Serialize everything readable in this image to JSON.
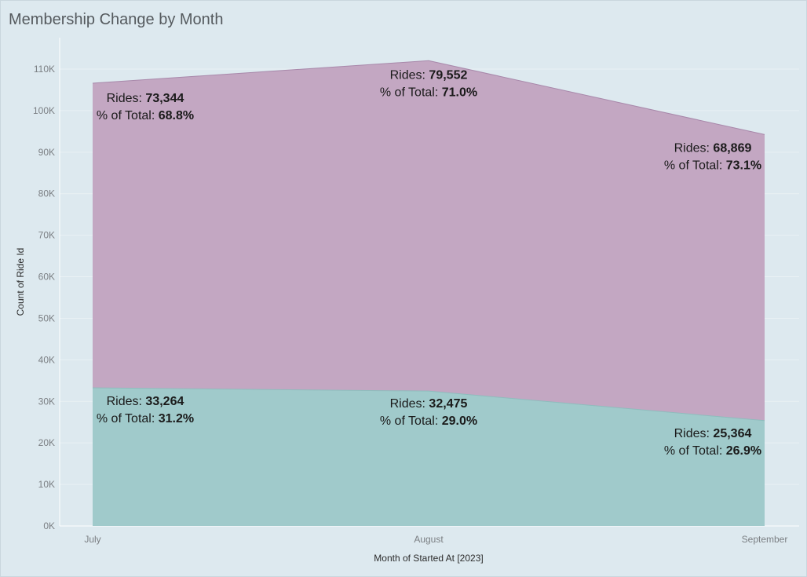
{
  "title": "Membership Change by Month",
  "colors": {
    "background": "#dde9ef",
    "member_fill": "#c3a7c2",
    "casual_fill": "#a0cacb",
    "member_line": "#a888aa",
    "casual_line": "#8fbcbd"
  },
  "chart_data": {
    "type": "area",
    "stacked": true,
    "title": "Membership Change by Month",
    "xlabel": "Month of Started At [2023]",
    "ylabel": "Count of Ride Id",
    "categories": [
      "July",
      "August",
      "September"
    ],
    "ylim": [
      0,
      115000
    ],
    "yticks": [
      0,
      10000,
      20000,
      30000,
      40000,
      50000,
      60000,
      70000,
      80000,
      90000,
      100000,
      110000
    ],
    "ytick_labels": [
      "0K",
      "10K",
      "20K",
      "30K",
      "40K",
      "50K",
      "60K",
      "70K",
      "80K",
      "90K",
      "100K",
      "110K"
    ],
    "grid": true,
    "series": [
      {
        "values": [
          33264,
          32475,
          25364
        ],
        "value_labels": [
          "33,264",
          "32,475",
          "25,364"
        ],
        "pct_labels": [
          "31.2%",
          "29.0%",
          "26.9%"
        ]
      },
      {
        "values": [
          73344,
          79552,
          68869
        ],
        "value_labels": [
          "73,344",
          "79,552",
          "68,869"
        ],
        "pct_labels": [
          "68.8%",
          "71.0%",
          "73.1%"
        ]
      }
    ],
    "label_prefix_rides": "Rides: ",
    "label_prefix_pct": "% of Total: "
  }
}
